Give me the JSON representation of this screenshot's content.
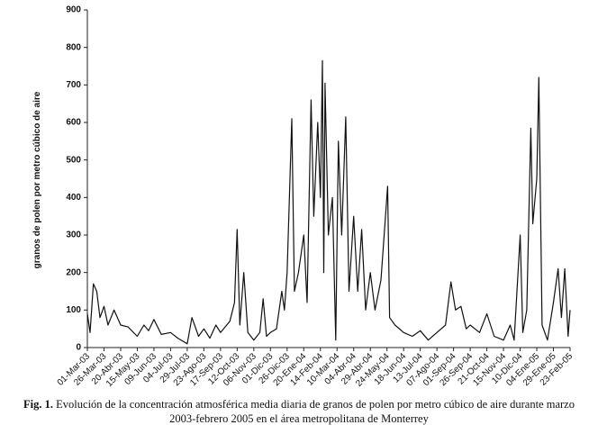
{
  "chart_data": {
    "type": "line",
    "y_label": "granos de polen por metro cúbico de aire",
    "caption_label": "Fig. 1.",
    "caption": "Evolución de la concentración atmosférica media diaria de granos de polen por metro cúbico de aire durante marzo 2003-febrero 2005 en el área metropolitana de Monterrey",
    "color": "#111111",
    "x": [
      "2003-03-01",
      "2003-03-05",
      "2003-03-10",
      "2003-03-15",
      "2003-03-20",
      "2003-03-26",
      "2003-04-01",
      "2003-04-10",
      "2003-04-20",
      "2003-05-01",
      "2003-05-15",
      "2003-05-25",
      "2003-06-01",
      "2003-06-09",
      "2003-06-20",
      "2003-07-04",
      "2003-07-15",
      "2003-07-29",
      "2003-08-05",
      "2003-08-15",
      "2003-08-23",
      "2003-09-01",
      "2003-09-10",
      "2003-09-17",
      "2003-10-01",
      "2003-10-08",
      "2003-10-12",
      "2003-10-16",
      "2003-10-22",
      "2003-10-28",
      "2003-11-06",
      "2003-11-15",
      "2003-11-20",
      "2003-11-25",
      "2003-12-01",
      "2003-12-10",
      "2003-12-18",
      "2003-12-22",
      "2003-12-26",
      "2004-01-02",
      "2004-01-06",
      "2004-01-12",
      "2004-01-20",
      "2004-01-25",
      "2004-01-31",
      "2004-02-04",
      "2004-02-10",
      "2004-02-14",
      "2004-02-17",
      "2004-02-19",
      "2004-02-21",
      "2004-02-26",
      "2004-03-03",
      "2004-03-08",
      "2004-03-12",
      "2004-03-17",
      "2004-03-23",
      "2004-03-28",
      "2004-04-04",
      "2004-04-10",
      "2004-04-16",
      "2004-04-22",
      "2004-04-29",
      "2004-05-06",
      "2004-05-15",
      "2004-05-25",
      "2004-05-28",
      "2004-06-05",
      "2004-06-18",
      "2004-07-01",
      "2004-07-13",
      "2004-07-25",
      "2004-08-07",
      "2004-08-20",
      "2004-08-28",
      "2004-09-04",
      "2004-09-12",
      "2004-09-20",
      "2004-09-26",
      "2004-10-10",
      "2004-10-21",
      "2004-11-01",
      "2004-11-15",
      "2004-11-25",
      "2004-12-01",
      "2004-12-10",
      "2004-12-14",
      "2004-12-20",
      "2004-12-26",
      "2004-12-29",
      "2005-01-04",
      "2005-01-07",
      "2005-01-12",
      "2005-01-20",
      "2005-01-29",
      "2005-02-05",
      "2005-02-10",
      "2005-02-15",
      "2005-02-20",
      "2005-02-23"
    ],
    "values": [
      90,
      40,
      170,
      150,
      80,
      110,
      60,
      100,
      60,
      55,
      30,
      60,
      45,
      75,
      35,
      40,
      25,
      10,
      80,
      30,
      50,
      25,
      60,
      40,
      70,
      120,
      315,
      60,
      200,
      40,
      20,
      40,
      130,
      30,
      40,
      50,
      150,
      100,
      200,
      610,
      150,
      200,
      300,
      120,
      660,
      350,
      600,
      400,
      765,
      200,
      705,
      300,
      400,
      20,
      550,
      300,
      615,
      150,
      350,
      150,
      315,
      100,
      200,
      100,
      180,
      430,
      80,
      60,
      40,
      30,
      45,
      20,
      40,
      60,
      175,
      100,
      110,
      50,
      60,
      40,
      90,
      30,
      20,
      60,
      20,
      300,
      40,
      100,
      585,
      330,
      450,
      720,
      60,
      20,
      120,
      210,
      80,
      210,
      30,
      100
    ],
    "xlim": [
      "2003-03-01",
      "2005-02-23"
    ],
    "xticks": [
      {
        "value": "2003-03-01",
        "label": "01-Mar-03"
      },
      {
        "value": "2003-03-26",
        "label": "26-Mar-03"
      },
      {
        "value": "2003-04-20",
        "label": "20-Abr-03"
      },
      {
        "value": "2003-05-15",
        "label": "15-May-03"
      },
      {
        "value": "2003-06-09",
        "label": "09-Jun-03"
      },
      {
        "value": "2003-07-04",
        "label": "04-Jul-03"
      },
      {
        "value": "2003-07-29",
        "label": "29-Jul-03"
      },
      {
        "value": "2003-08-23",
        "label": "23-Ago-03"
      },
      {
        "value": "2003-09-17",
        "label": "17-Sep-03"
      },
      {
        "value": "2003-10-12",
        "label": "12-Oct-03"
      },
      {
        "value": "2003-11-06",
        "label": "06-Nov-03"
      },
      {
        "value": "2003-12-01",
        "label": "01-Dic-03"
      },
      {
        "value": "2003-12-26",
        "label": "26-Dic-03"
      },
      {
        "value": "2004-01-20",
        "label": "20-Ene-04"
      },
      {
        "value": "2004-02-14",
        "label": "14-Feb-04"
      },
      {
        "value": "2004-03-10",
        "label": "10-Mar-04"
      },
      {
        "value": "2004-04-04",
        "label": "04-Abr-04"
      },
      {
        "value": "2004-04-29",
        "label": "29-Abr-04"
      },
      {
        "value": "2004-05-24",
        "label": "24-May-04"
      },
      {
        "value": "2004-06-18",
        "label": "18-Jun-04"
      },
      {
        "value": "2004-07-13",
        "label": "13-Jul-04"
      },
      {
        "value": "2004-08-07",
        "label": "07-Ago-04"
      },
      {
        "value": "2004-09-01",
        "label": "01-Sep-04"
      },
      {
        "value": "2004-09-26",
        "label": "26-Sep-04"
      },
      {
        "value": "2004-10-21",
        "label": "21-Oct-04"
      },
      {
        "value": "2004-11-15",
        "label": "15-Nov-04"
      },
      {
        "value": "2004-12-10",
        "label": "10-Dic-04"
      },
      {
        "value": "2005-01-04",
        "label": "04-Ene-05"
      },
      {
        "value": "2005-01-29",
        "label": "29-Ene-05"
      },
      {
        "value": "2005-02-23",
        "label": "23-Feb-05"
      }
    ],
    "ylim": [
      0,
      900
    ],
    "yticks": [
      0,
      100,
      200,
      300,
      400,
      500,
      600,
      700,
      800,
      900
    ],
    "grid": false
  }
}
